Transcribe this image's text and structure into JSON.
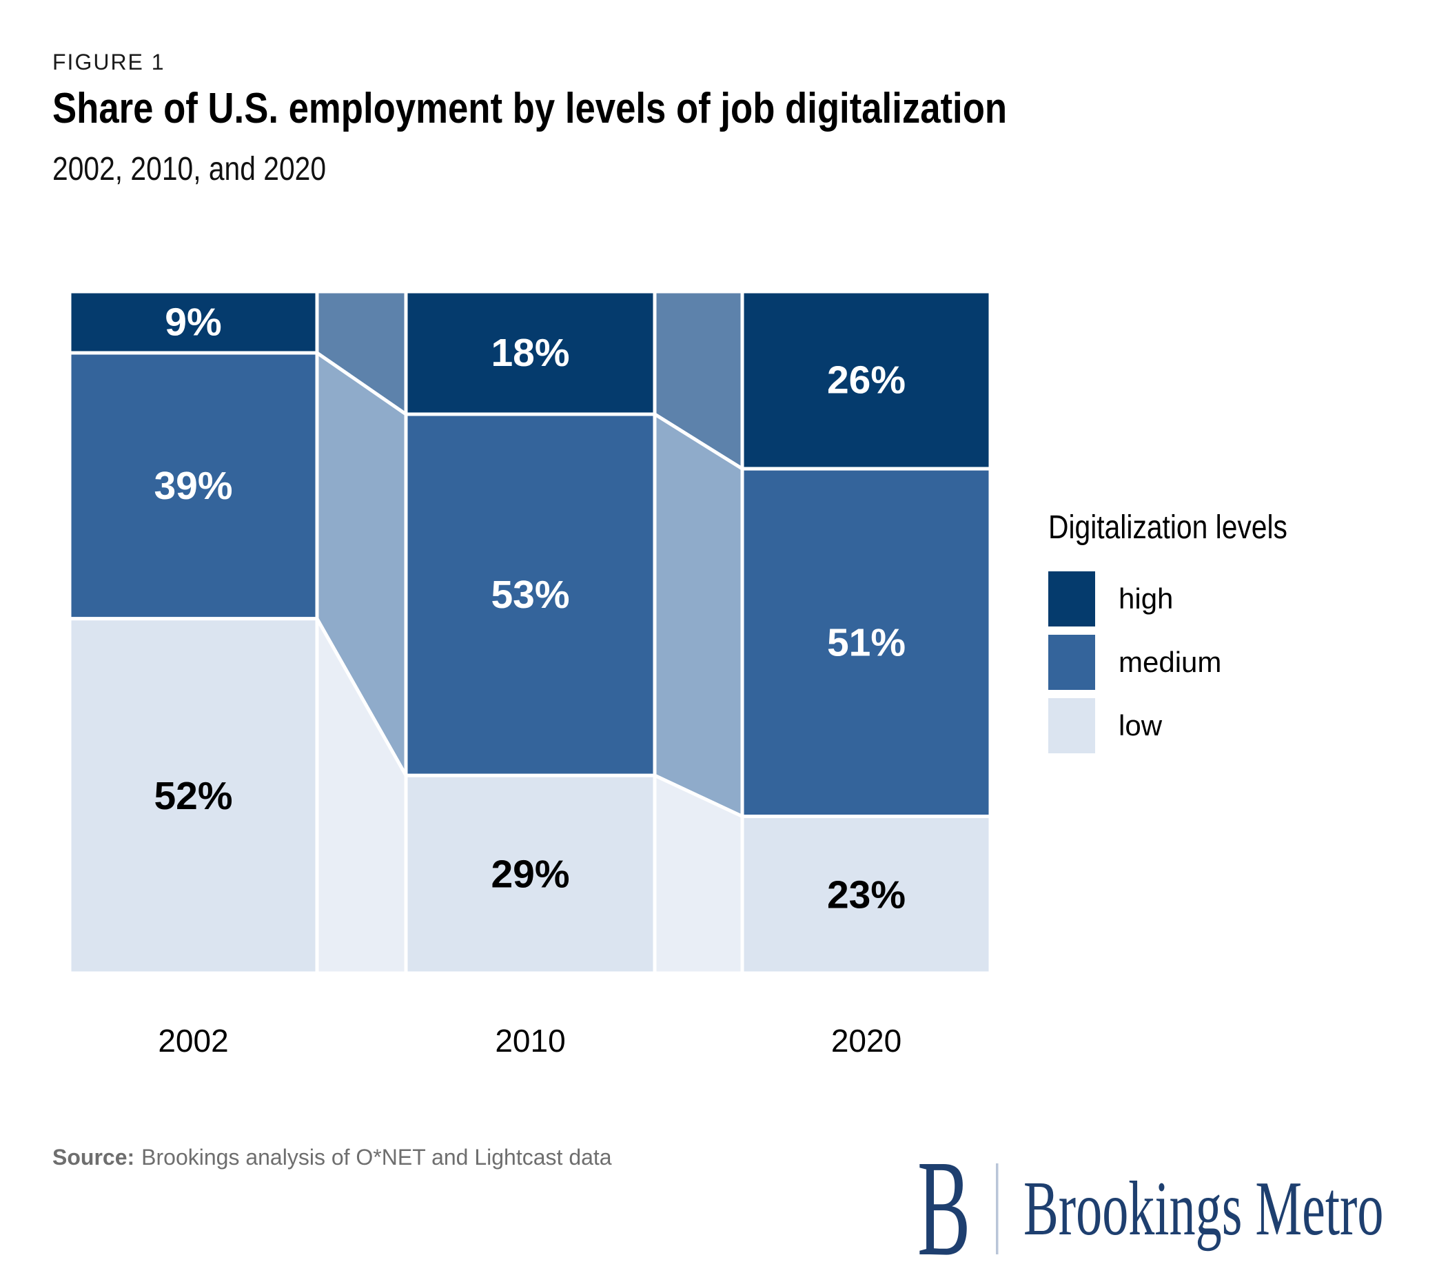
{
  "figure_label": "FIGURE 1",
  "title": "Share of U.S. employment by levels of job digitalization",
  "subtitle": "2002, 2010, and 2020",
  "legend": {
    "title": "Digitalization levels",
    "items": [
      {
        "label": "high",
        "color": "#053b6d"
      },
      {
        "label": "medium",
        "color": "#34649b"
      },
      {
        "label": "low",
        "color": "#dbe4f0"
      }
    ]
  },
  "source": {
    "prefix": "Source:",
    "text": "Brookings analysis of O*NET and Lightcast data"
  },
  "logo": {
    "monogram": "B",
    "wordmark": "Brookings Metro",
    "color": "#1e3f6f",
    "divider_color": "#b9c5d8"
  },
  "colors": {
    "background": "#ffffff",
    "separator": "#ffffff"
  },
  "chart_data": {
    "type": "stacked-bar-with-flows",
    "categories": [
      "2002",
      "2010",
      "2020"
    ],
    "stack_order_top_to_bottom": [
      "high",
      "medium",
      "low"
    ],
    "series": [
      {
        "name": "high",
        "values": [
          9,
          18,
          26
        ],
        "color": "#053b6d",
        "ribbon_color": "#5d82ab",
        "label_color": "#ffffff"
      },
      {
        "name": "medium",
        "values": [
          39,
          53,
          51
        ],
        "color": "#34649b",
        "ribbon_color": "#8fabca",
        "label_color": "#ffffff"
      },
      {
        "name": "low",
        "values": [
          52,
          29,
          23
        ],
        "color": "#dbe4f0",
        "ribbon_color": "#e9eef6",
        "label_color": "#000000"
      }
    ],
    "value_suffix": "%",
    "ylim": [
      0,
      100
    ],
    "grid": false,
    "legend_position": "right",
    "title": "Share of U.S. employment by levels of job digitalization",
    "xlabel": "",
    "ylabel": ""
  }
}
